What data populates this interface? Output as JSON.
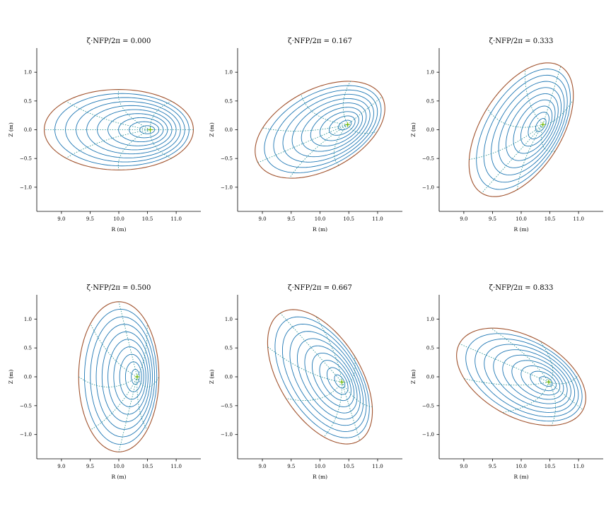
{
  "chart_data": {
    "type": "line",
    "description_kind": "flux-surface cross sections",
    "xlabel": "R (m)",
    "ylabel": "Z (m)",
    "xlim": [
      8.57,
      11.43
    ],
    "ylim": [
      -1.42,
      1.42
    ],
    "xticks": [
      9.0,
      9.5,
      10.0,
      10.5,
      11.0
    ],
    "xtick_labels": [
      "9.0",
      "9.5",
      "10.0",
      "10.5",
      "11.0"
    ],
    "yticks": [
      -1.0,
      -0.5,
      0.0,
      0.5,
      1.0
    ],
    "ytick_labels": [
      "−1.0",
      "−0.5",
      "0.0",
      "0.5",
      "1.0"
    ],
    "n_surfaces": 10,
    "n_poloidal_lines": 8,
    "colors": {
      "surfaces": "#1f77b4",
      "boundary": "#a0522d",
      "poloidal_lines": "#1a8a8a",
      "magnetic_axis": "#7fbf00"
    },
    "panels": [
      {
        "title": "ζ·NFP/2π = 0.000",
        "center_R": 10.0,
        "center_Z": 0.0,
        "a": 1.3,
        "b": 0.7,
        "tilt_deg": 0,
        "axis_R": 10.55,
        "axis_Z": 0.0
      },
      {
        "title": "ζ·NFP/2π = 0.167",
        "center_R": 10.0,
        "center_Z": 0.0,
        "a": 1.22,
        "b": 0.7,
        "tilt_deg": 28,
        "axis_R": 10.48,
        "axis_Z": 0.09
      },
      {
        "title": "ζ·NFP/2π = 0.333",
        "center_R": 10.0,
        "center_Z": 0.0,
        "a": 1.3,
        "b": 0.7,
        "tilt_deg": 58,
        "axis_R": 10.38,
        "axis_Z": 0.09
      },
      {
        "title": "ζ·NFP/2π = 0.500",
        "center_R": 10.0,
        "center_Z": 0.0,
        "a": 1.3,
        "b": 0.7,
        "tilt_deg": 90,
        "axis_R": 10.32,
        "axis_Z": 0.0
      },
      {
        "title": "ζ·NFP/2π = 0.667",
        "center_R": 10.0,
        "center_Z": 0.0,
        "a": 1.3,
        "b": 0.7,
        "tilt_deg": 122,
        "axis_R": 10.38,
        "axis_Z": -0.09
      },
      {
        "title": "ζ·NFP/2π = 0.833",
        "center_R": 10.0,
        "center_Z": 0.0,
        "a": 1.22,
        "b": 0.7,
        "tilt_deg": 152,
        "axis_R": 10.48,
        "axis_Z": -0.09
      }
    ]
  }
}
